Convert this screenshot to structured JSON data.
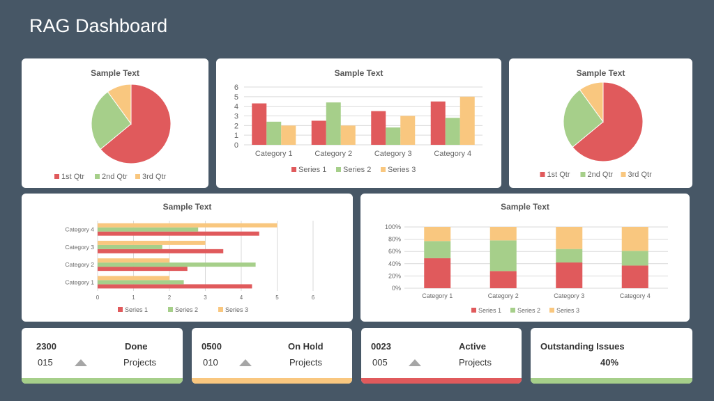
{
  "page_title": "RAG Dashboard",
  "colors": {
    "red": "#E05A5C",
    "green": "#A6CF8A",
    "orange": "#F9C77F",
    "background": "#475766"
  },
  "chart_data": [
    {
      "type": "pie",
      "title": "Sample Text",
      "labels": [
        "1st Qtr",
        "2nd Qtr",
        "3rd Qtr"
      ],
      "values": [
        64,
        26,
        10
      ],
      "legend": "bottom"
    },
    {
      "type": "bar",
      "title": "Sample Text",
      "categories": [
        "Category 1",
        "Category 2",
        "Category 3",
        "Category 4"
      ],
      "series": [
        {
          "name": "Series 1",
          "values": [
            4.3,
            2.5,
            3.5,
            4.5
          ]
        },
        {
          "name": "Series 2",
          "values": [
            2.4,
            4.4,
            1.8,
            2.8
          ]
        },
        {
          "name": "Series 3",
          "values": [
            2,
            2,
            3,
            5
          ]
        }
      ],
      "ylim": [
        0,
        6
      ],
      "yticks": [
        "0",
        "1",
        "2",
        "3",
        "4",
        "5",
        "6"
      ],
      "grid": true,
      "legend": "bottom"
    },
    {
      "type": "pie",
      "title": "Sample Text",
      "labels": [
        "1st Qtr",
        "2nd Qtr",
        "3rd Qtr"
      ],
      "values": [
        64,
        26,
        10
      ],
      "legend": "bottom"
    },
    {
      "type": "bar",
      "orientation": "horizontal",
      "title": "Sample Text",
      "categories": [
        "Category 1",
        "Category 2",
        "Category 3",
        "Category 4"
      ],
      "series": [
        {
          "name": "Series 1",
          "values": [
            4.3,
            2.5,
            3.5,
            4.5
          ]
        },
        {
          "name": "Series 2",
          "values": [
            2.4,
            4.4,
            1.8,
            2.8
          ]
        },
        {
          "name": "Series 3",
          "values": [
            2,
            2,
            3,
            5
          ]
        }
      ],
      "xlim": [
        0,
        6
      ],
      "xticks": [
        "0",
        "1",
        "2",
        "3",
        "4",
        "5",
        "6"
      ],
      "grid": true,
      "legend": "bottom"
    },
    {
      "type": "bar",
      "stacked": "percent",
      "title": "Sample Text",
      "categories": [
        "Category 1",
        "Category 2",
        "Category 3",
        "Category 4"
      ],
      "series": [
        {
          "name": "Series 1",
          "values": [
            49,
            28,
            42,
            37
          ]
        },
        {
          "name": "Series 2",
          "values": [
            28,
            50,
            22,
            24
          ]
        },
        {
          "name": "Series 3",
          "values": [
            23,
            22,
            36,
            39
          ]
        }
      ],
      "ylim": [
        0,
        100
      ],
      "yticks": [
        "0%",
        "20%",
        "40%",
        "60%",
        "80%",
        "100%"
      ],
      "grid": true,
      "legend": "bottom"
    }
  ],
  "stats": [
    {
      "value": "2300",
      "label": "Done",
      "sub_value": "015",
      "sub_label": "Projects",
      "color": "#A6CF8A",
      "arrow": "triangle-up-icon"
    },
    {
      "value": "0500",
      "label": "On Hold",
      "sub_value": "010",
      "sub_label": "Projects",
      "color": "#F9C77F",
      "arrow": "triangle-up-icon"
    },
    {
      "value": "0023",
      "label": "Active",
      "sub_value": "005",
      "sub_label": "Projects",
      "color": "#E05A5C",
      "arrow": "triangle-up-icon"
    },
    {
      "label": "Outstanding Issues",
      "percent": "40%",
      "color": "#A6CF8A"
    }
  ]
}
